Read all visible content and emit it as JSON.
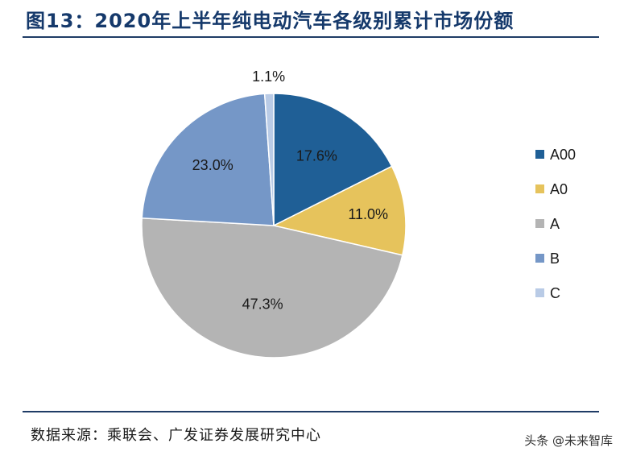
{
  "title": "图13：2020年上半年纯电动汽车各级别累计市场份额",
  "source": "数据来源：乘联会、广发证券发展研究中心",
  "watermark": "头条 @未来智库",
  "chart_data": {
    "type": "pie",
    "title": "图13：2020年上半年纯电动汽车各级别累计市场份额",
    "categories": [
      "A00",
      "A0",
      "A",
      "B",
      "C"
    ],
    "values": [
      17.6,
      11.0,
      47.3,
      23.0,
      1.1
    ],
    "labels": [
      "17.6%",
      "11.0%",
      "47.3%",
      "23.0%",
      "1.1%"
    ],
    "colors": [
      "#1f5f96",
      "#e6c35c",
      "#b4b4b4",
      "#7597c7",
      "#b9cbe6"
    ],
    "start_angle": "12 o'clock",
    "direction": "clockwise",
    "legend_position": "right"
  }
}
